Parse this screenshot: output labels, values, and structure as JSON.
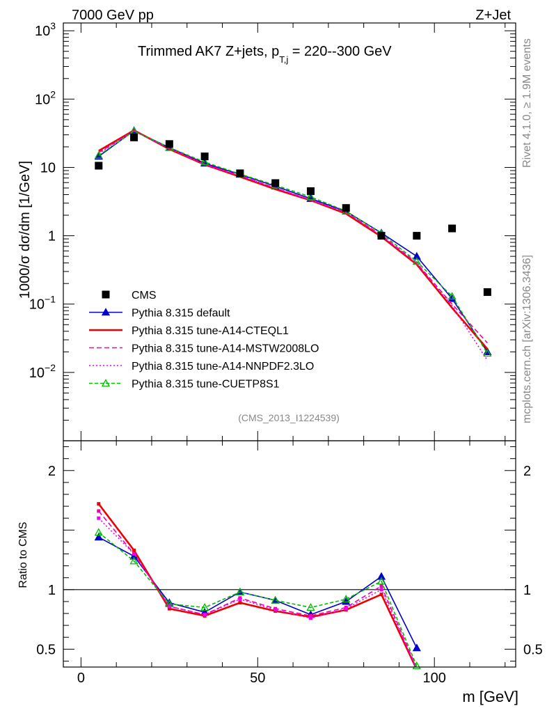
{
  "header": {
    "left": "7000 GeV pp",
    "right": "Z+Jet"
  },
  "side_labels": {
    "rivet": "Rivet 4.1.0, ≥ 1.9M events",
    "mcplots": "mcplots.cern.ch [arXiv:1306.3436]"
  },
  "chart_data": {
    "type": "line",
    "title_main": "Trimmed AK7 Z+jets, p",
    "title_sub": "T,j",
    "title_tail": " = 220--300 GeV",
    "analysis_tag": "(CMS_2013_I1224539)",
    "xlabel": "m [GeV]",
    "ylabel": "1000/σ  dσ/dm [1/GeV]",
    "ratio_ylabel": "Ratio to CMS",
    "xlim": [
      -5,
      123
    ],
    "ylim": [
      0.001,
      1300
    ],
    "yscale": "log",
    "ratio_ylim": [
      0.35,
      2.25
    ],
    "x_ticks": [
      0,
      50,
      100
    ],
    "y_ticks": [
      {
        "value": 1000,
        "base": "10",
        "exp": "3"
      },
      {
        "value": 100,
        "base": "10",
        "exp": "2"
      },
      {
        "value": 10,
        "base": "10",
        "exp": ""
      },
      {
        "value": 1,
        "base": "1",
        "exp": ""
      },
      {
        "value": 0.1,
        "base": "10",
        "exp": "−1"
      },
      {
        "value": 0.01,
        "base": "10",
        "exp": "−2"
      }
    ],
    "ratio_ticks": [
      {
        "value": 2,
        "label": "2"
      },
      {
        "value": 1,
        "label": "1"
      },
      {
        "value": 0.5,
        "label": "0.5"
      }
    ],
    "x": [
      5,
      15,
      25,
      35,
      45,
      55,
      65,
      75,
      85,
      95,
      105,
      115
    ],
    "data": {
      "name": "CMS",
      "values": [
        10.6,
        27.5,
        22,
        14.5,
        8.2,
        5.9,
        4.5,
        2.55,
        1.0,
        1.0,
        1.28,
        0.15
      ]
    },
    "series": [
      {
        "name": "Pythia 8.315 default",
        "color": "#0000cc",
        "dash": "",
        "marker": "triangle",
        "values": [
          14.5,
          34.5,
          19.5,
          11.5,
          7.9,
          5.3,
          3.5,
          2.28,
          1.1,
          0.5,
          0.12,
          0.02
        ],
        "ratio": [
          1.44,
          1.28,
          0.89,
          0.81,
          0.98,
          0.91,
          0.79,
          0.9,
          1.11,
          0.51
        ]
      },
      {
        "name": "Pythia 8.315 tune-A14-CTEQL1",
        "color": "#ee0000",
        "dash": "",
        "marker": "none",
        "values": [
          17.5,
          35,
          18.5,
          11.0,
          7.3,
          4.8,
          3.3,
          2.1,
          0.97,
          0.38,
          0.088,
          0.022
        ],
        "ratio": [
          1.72,
          1.33,
          0.84,
          0.78,
          0.89,
          0.82,
          0.77,
          0.83,
          0.96,
          0.33
        ]
      },
      {
        "name": "Pythia 8.315 tune-A14-MSTW2008LO",
        "color": "#ee00aa",
        "dash": "7 4",
        "marker": "none",
        "values": [
          16.5,
          34.5,
          19.0,
          11.2,
          7.6,
          5.0,
          3.35,
          2.2,
          1.02,
          0.4,
          0.1,
          0.027
        ],
        "ratio": [
          1.66,
          1.3,
          0.86,
          0.79,
          0.93,
          0.84,
          0.78,
          0.85,
          1.03,
          0.34
        ]
      },
      {
        "name": "Pythia 8.315 tune-A14-NNPDF2.3LO",
        "color": "#ee00ee",
        "dash": "2 3",
        "marker": "none",
        "values": [
          16.0,
          34.0,
          19.0,
          11.0,
          7.5,
          5.0,
          3.3,
          2.2,
          1.0,
          0.39,
          0.095,
          0.015
        ],
        "ratio": [
          1.6,
          1.3,
          0.86,
          0.79,
          0.92,
          0.83,
          0.76,
          0.84,
          1.0,
          0.33
        ]
      },
      {
        "name": "Pythia 8.315 tune-CUETP8S1",
        "color": "#00bb00",
        "dash": "5 3",
        "marker": "open-triangle",
        "values": [
          15.0,
          34.0,
          19.5,
          12.0,
          8.0,
          5.5,
          3.7,
          2.3,
          1.08,
          0.42,
          0.13,
          0.019
        ],
        "ratio": [
          1.48,
          1.24,
          0.88,
          0.85,
          0.98,
          0.91,
          0.85,
          0.92,
          1.07,
          0.36
        ]
      }
    ]
  }
}
